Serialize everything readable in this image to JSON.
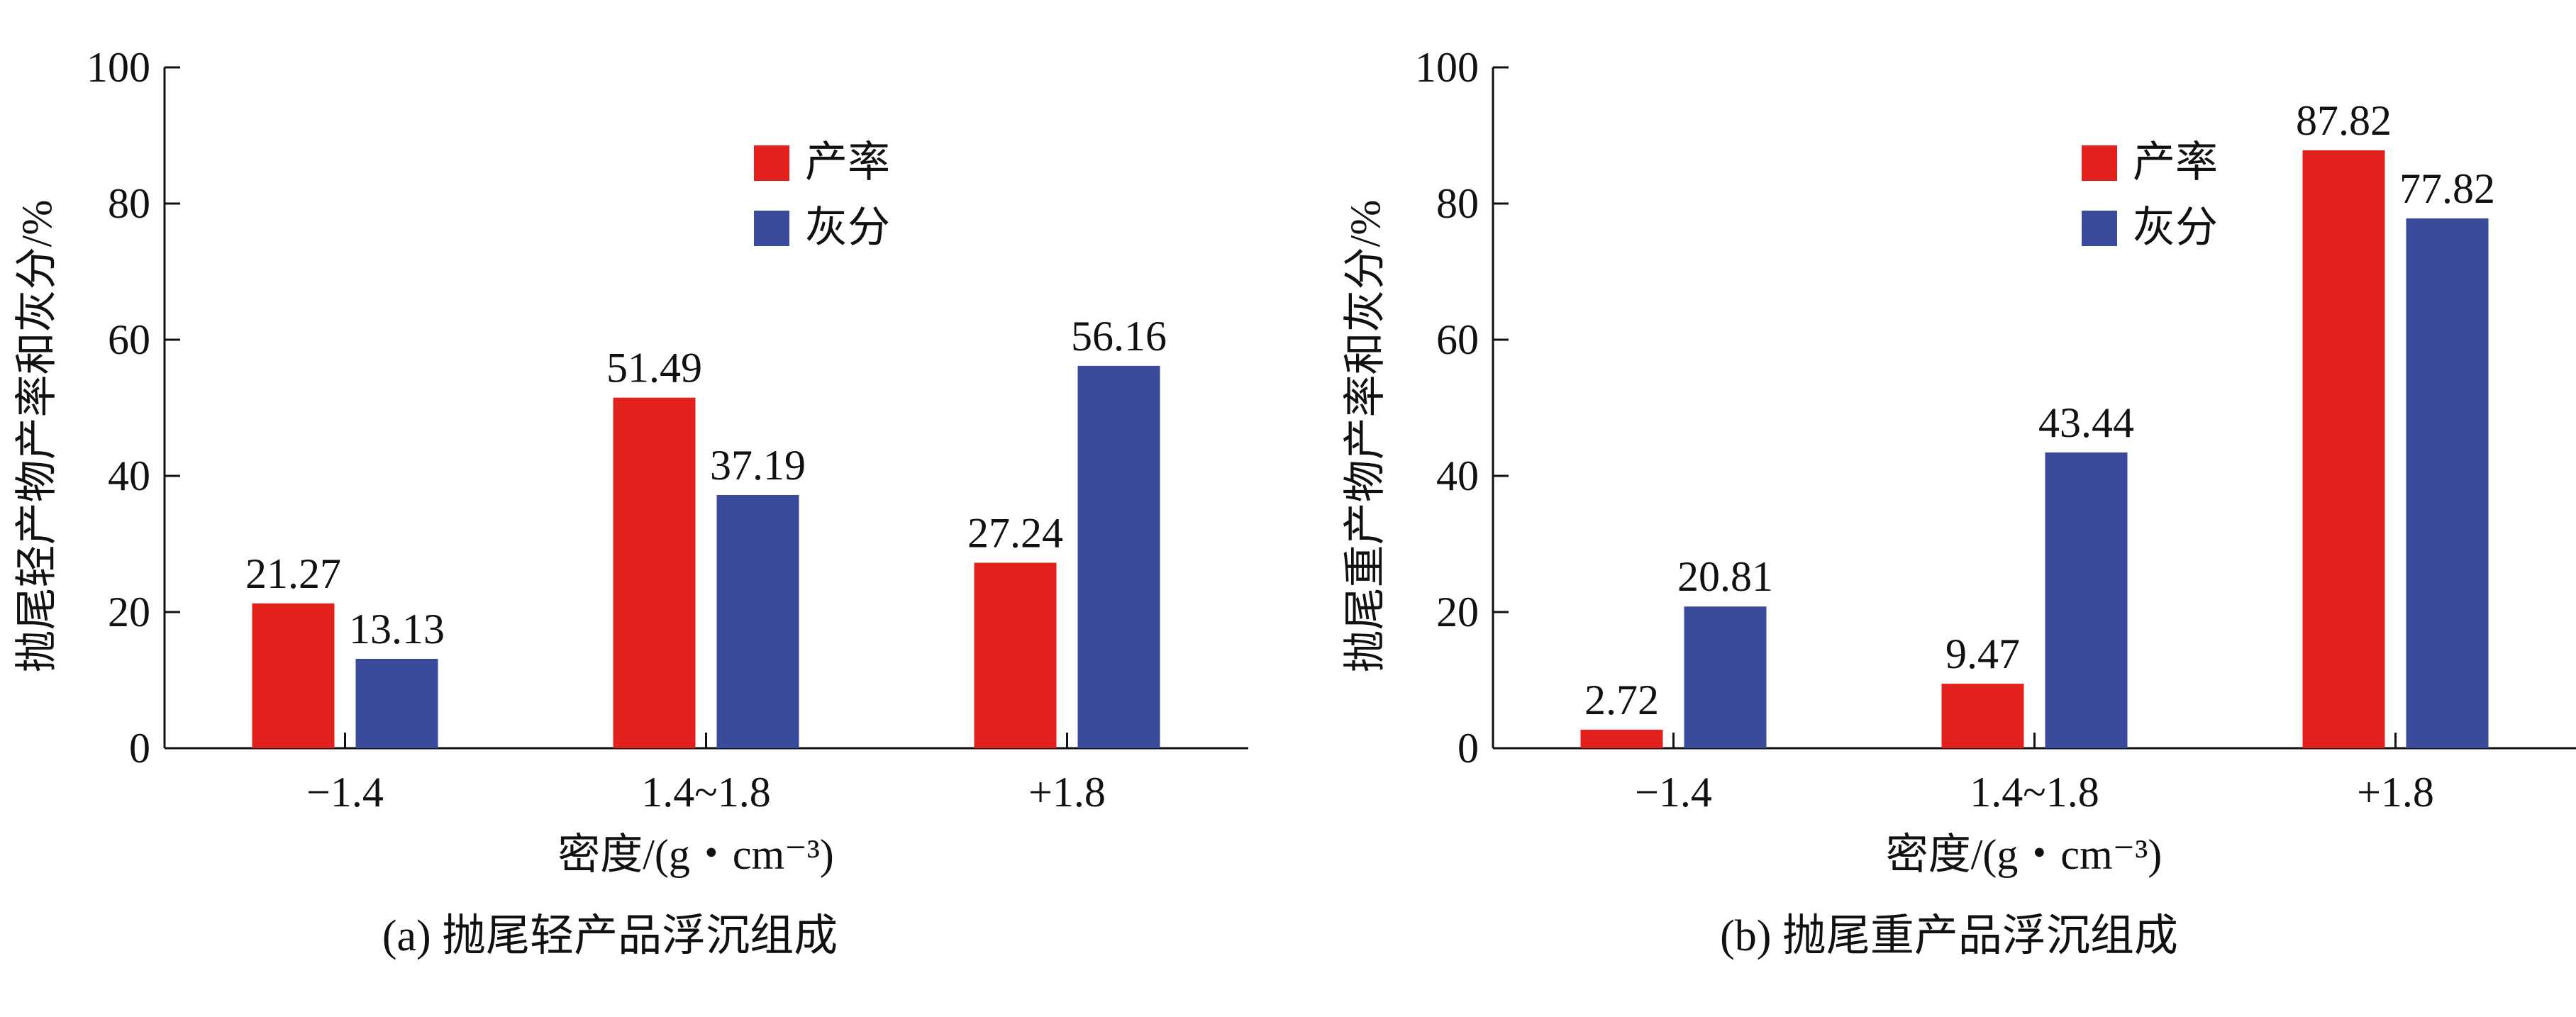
{
  "chart_data": [
    {
      "type": "bar",
      "caption": "(a) 抛尾轻产品浮沉组成",
      "xlabel": "密度/(g・cm⁻³)",
      "ylabel": "抛尾轻产物产率和灰分/%",
      "categories": [
        "−1.4",
        "1.4~1.8",
        "+1.8"
      ],
      "series": [
        {
          "name": "产率",
          "values": [
            21.27,
            51.49,
            27.24
          ],
          "labels": [
            "21.27",
            "51.49",
            "27.24"
          ]
        },
        {
          "name": "灰分",
          "values": [
            13.13,
            37.19,
            56.16
          ],
          "labels": [
            "13.13",
            "37.19",
            "56.16"
          ]
        }
      ],
      "ylim": [
        0,
        100
      ],
      "yticks": [
        "0",
        "20",
        "40",
        "60",
        "80",
        "100"
      ],
      "legend_position": "top-center",
      "grid": false
    },
    {
      "type": "bar",
      "caption": "(b) 抛尾重产品浮沉组成",
      "xlabel": "密度/(g・cm⁻³)",
      "ylabel": "抛尾重产物产率和灰分/%",
      "categories": [
        "−1.4",
        "1.4~1.8",
        "+1.8"
      ],
      "series": [
        {
          "name": "产率",
          "values": [
            2.72,
            9.47,
            87.82
          ],
          "labels": [
            "2.72",
            "9.47",
            "87.82"
          ]
        },
        {
          "name": "灰分",
          "values": [
            20.81,
            43.44,
            77.82
          ],
          "labels": [
            "20.81",
            "43.44",
            "77.82"
          ]
        }
      ],
      "ylim": [
        0,
        100
      ],
      "yticks": [
        "0",
        "20",
        "40",
        "60",
        "80",
        "100"
      ],
      "legend_position": "top-right",
      "grid": false
    }
  ],
  "colors": {
    "产率": "#e3211c",
    "灰分": "#3b4b9c"
  }
}
